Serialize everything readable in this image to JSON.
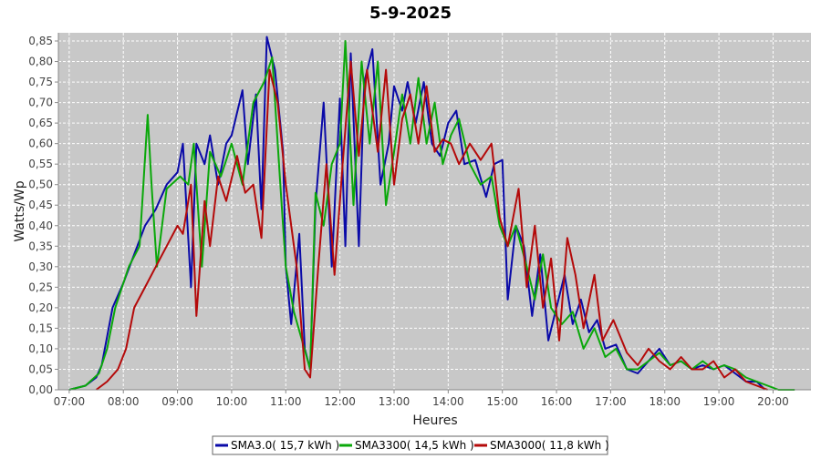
{
  "chart_data": {
    "type": "line",
    "title": "5-9-2025",
    "xlabel": "Heures",
    "ylabel": "Watts/Wp",
    "xlim": [
      6.8,
      20.7
    ],
    "ylim": [
      0,
      0.87
    ],
    "x_ticks": [
      "07:00",
      "08:00",
      "09:00",
      "10:00",
      "11:00",
      "12:00",
      "13:00",
      "14:00",
      "15:00",
      "16:00",
      "17:00",
      "18:00",
      "19:00",
      "20:00"
    ],
    "y_ticks": [
      "0,00",
      "0,05",
      "0,10",
      "0,15",
      "0,20",
      "0,25",
      "0,30",
      "0,35",
      "0,40",
      "0,45",
      "0,50",
      "0,55",
      "0,60",
      "0,65",
      "0,70",
      "0,75",
      "0,80",
      "0,85"
    ],
    "grid": true,
    "legend_position": "bottom",
    "colors": {
      "plot_bg": "#c8c8c8",
      "grid": "#ffffff"
    },
    "series": [
      {
        "name": "SMA3.0( 15,7 kWh )",
        "color": "#0a0aa8",
        "x": [
          7.0,
          7.3,
          7.5,
          7.6,
          7.8,
          8.0,
          8.2,
          8.4,
          8.6,
          8.8,
          9.0,
          9.1,
          9.25,
          9.35,
          9.5,
          9.6,
          9.75,
          9.9,
          10.0,
          10.2,
          10.3,
          10.45,
          10.55,
          10.65,
          10.8,
          10.95,
          11.0,
          11.1,
          11.25,
          11.35,
          11.45,
          11.55,
          11.7,
          11.85,
          12.0,
          12.1,
          12.2,
          12.35,
          12.45,
          12.6,
          12.75,
          12.9,
          13.0,
          13.15,
          13.25,
          13.4,
          13.55,
          13.7,
          13.85,
          14.0,
          14.15,
          14.3,
          14.5,
          14.7,
          14.85,
          15.0,
          15.1,
          15.25,
          15.4,
          15.55,
          15.7,
          15.85,
          16.0,
          16.15,
          16.3,
          16.45,
          16.6,
          16.75,
          16.9,
          17.1,
          17.3,
          17.5,
          17.7,
          17.9,
          18.1,
          18.3,
          18.5,
          18.7,
          18.9,
          19.1,
          19.3,
          19.5,
          19.7,
          19.85
        ],
        "values": [
          0.0,
          0.01,
          0.03,
          0.06,
          0.2,
          0.26,
          0.33,
          0.4,
          0.44,
          0.5,
          0.53,
          0.6,
          0.25,
          0.6,
          0.55,
          0.62,
          0.5,
          0.6,
          0.62,
          0.73,
          0.55,
          0.72,
          0.44,
          0.86,
          0.78,
          0.58,
          0.3,
          0.16,
          0.38,
          0.1,
          0.05,
          0.45,
          0.7,
          0.3,
          0.71,
          0.35,
          0.82,
          0.35,
          0.75,
          0.83,
          0.5,
          0.6,
          0.74,
          0.68,
          0.75,
          0.65,
          0.75,
          0.6,
          0.57,
          0.65,
          0.68,
          0.55,
          0.56,
          0.47,
          0.55,
          0.56,
          0.22,
          0.4,
          0.35,
          0.18,
          0.33,
          0.12,
          0.2,
          0.28,
          0.16,
          0.22,
          0.14,
          0.17,
          0.1,
          0.11,
          0.05,
          0.04,
          0.07,
          0.1,
          0.06,
          0.07,
          0.05,
          0.06,
          0.05,
          0.06,
          0.04,
          0.02,
          0.02,
          0.0
        ]
      },
      {
        "name": "SMA3300( 14,5 kWh )",
        "color": "#0aa80a",
        "x": [
          7.0,
          7.3,
          7.55,
          7.7,
          7.85,
          8.1,
          8.3,
          8.45,
          8.52,
          8.62,
          8.8,
          9.05,
          9.2,
          9.3,
          9.45,
          9.6,
          9.8,
          10.0,
          10.2,
          10.4,
          10.6,
          10.75,
          10.9,
          11.0,
          11.15,
          11.3,
          11.45,
          11.55,
          11.7,
          11.85,
          12.0,
          12.1,
          12.25,
          12.4,
          12.55,
          12.7,
          12.85,
          13.0,
          13.15,
          13.3,
          13.45,
          13.6,
          13.75,
          13.9,
          14.05,
          14.2,
          14.4,
          14.6,
          14.8,
          14.95,
          15.1,
          15.25,
          15.45,
          15.6,
          15.75,
          15.9,
          16.1,
          16.3,
          16.5,
          16.7,
          16.9,
          17.1,
          17.3,
          17.5,
          17.7,
          17.9,
          18.1,
          18.3,
          18.5,
          18.7,
          18.9,
          19.1,
          19.3,
          19.5,
          19.7,
          19.9,
          20.1,
          20.4
        ],
        "values": [
          0.0,
          0.01,
          0.04,
          0.1,
          0.2,
          0.3,
          0.35,
          0.67,
          0.5,
          0.3,
          0.49,
          0.52,
          0.5,
          0.6,
          0.3,
          0.58,
          0.52,
          0.6,
          0.5,
          0.7,
          0.75,
          0.81,
          0.5,
          0.3,
          0.19,
          0.12,
          0.05,
          0.48,
          0.4,
          0.55,
          0.6,
          0.85,
          0.45,
          0.8,
          0.6,
          0.8,
          0.45,
          0.58,
          0.72,
          0.6,
          0.76,
          0.6,
          0.7,
          0.55,
          0.62,
          0.66,
          0.55,
          0.5,
          0.52,
          0.4,
          0.35,
          0.4,
          0.3,
          0.22,
          0.33,
          0.2,
          0.16,
          0.19,
          0.1,
          0.15,
          0.08,
          0.1,
          0.05,
          0.05,
          0.07,
          0.09,
          0.06,
          0.07,
          0.05,
          0.07,
          0.05,
          0.06,
          0.05,
          0.03,
          0.02,
          0.01,
          0.0,
          0.0
        ]
      },
      {
        "name": "SMA3000( 11,8 kWh )",
        "color": "#b40a0a",
        "x": [
          7.5,
          7.7,
          7.9,
          8.05,
          8.2,
          8.4,
          8.6,
          8.8,
          9.0,
          9.1,
          9.25,
          9.35,
          9.5,
          9.6,
          9.75,
          9.9,
          10.1,
          10.25,
          10.4,
          10.55,
          10.7,
          10.85,
          11.0,
          11.2,
          11.35,
          11.45,
          11.6,
          11.75,
          11.9,
          12.05,
          12.2,
          12.35,
          12.5,
          12.7,
          12.85,
          13.0,
          13.15,
          13.3,
          13.45,
          13.6,
          13.75,
          13.9,
          14.05,
          14.2,
          14.4,
          14.6,
          14.8,
          14.95,
          15.1,
          15.3,
          15.45,
          15.6,
          15.75,
          15.9,
          16.05,
          16.2,
          16.35,
          16.5,
          16.7,
          16.85,
          17.05,
          17.3,
          17.5,
          17.7,
          17.9,
          18.1,
          18.3,
          18.5,
          18.7,
          18.9,
          19.1,
          19.3,
          19.5,
          19.7,
          19.9
        ],
        "values": [
          0.0,
          0.02,
          0.05,
          0.1,
          0.2,
          0.25,
          0.3,
          0.35,
          0.4,
          0.38,
          0.5,
          0.18,
          0.46,
          0.35,
          0.52,
          0.46,
          0.57,
          0.48,
          0.5,
          0.37,
          0.78,
          0.7,
          0.5,
          0.3,
          0.05,
          0.03,
          0.3,
          0.55,
          0.28,
          0.55,
          0.8,
          0.57,
          0.78,
          0.58,
          0.78,
          0.5,
          0.66,
          0.72,
          0.6,
          0.74,
          0.58,
          0.61,
          0.6,
          0.55,
          0.6,
          0.56,
          0.6,
          0.42,
          0.35,
          0.49,
          0.25,
          0.4,
          0.2,
          0.32,
          0.12,
          0.37,
          0.28,
          0.15,
          0.28,
          0.12,
          0.17,
          0.09,
          0.06,
          0.1,
          0.07,
          0.05,
          0.08,
          0.05,
          0.05,
          0.07,
          0.03,
          0.05,
          0.02,
          0.01,
          0.0
        ]
      }
    ]
  }
}
